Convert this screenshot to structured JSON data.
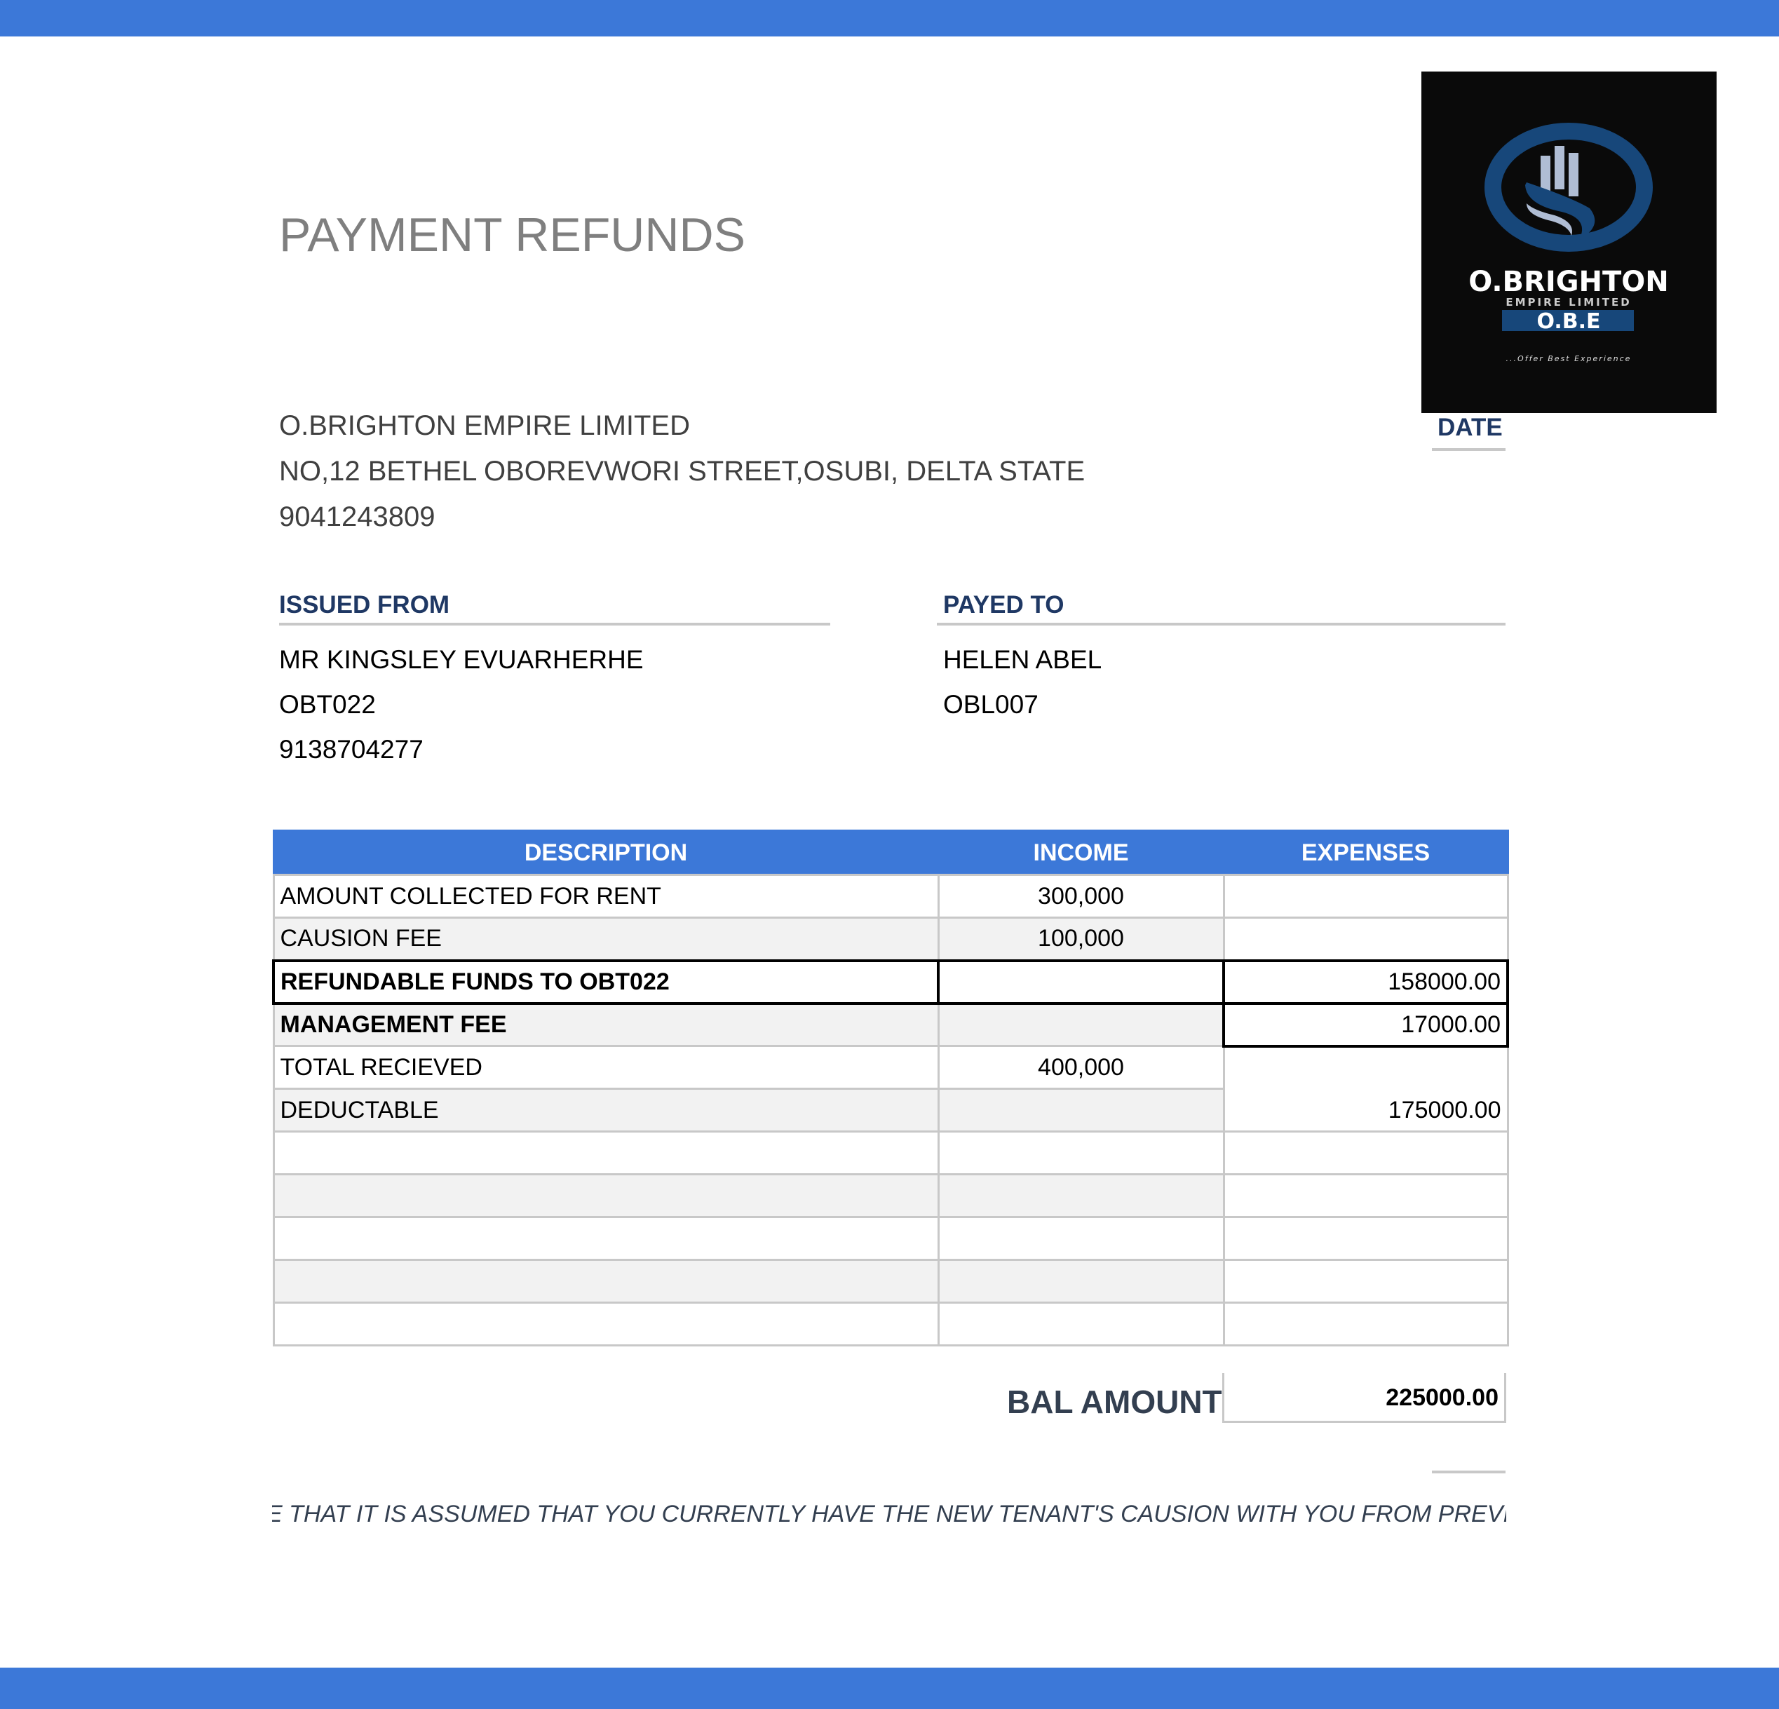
{
  "title": "PAYMENT REFUNDS",
  "company": {
    "name": "O.BRIGHTON EMPIRE LIMITED",
    "address": "NO,12 BETHEL OBOREVWORI STREET,OSUBI, DELTA STATE",
    "phone": "9041243809"
  },
  "logo": {
    "name": "O.BRIGHTON",
    "subtitle": "EMPIRE LIMITED",
    "abbr": "O.B.E",
    "tagline": "...Offer Best Experience"
  },
  "date_label": "DATE",
  "issued_from": {
    "label": "ISSUED FROM",
    "name": "MR KINGSLEY EVUARHERHE",
    "id": "OBT022",
    "phone": "9138704277"
  },
  "payed_to": {
    "label": "PAYED TO",
    "name": "HELEN ABEL",
    "id": "OBL007"
  },
  "table": {
    "headers": [
      "DESCRIPTION",
      "INCOME",
      "EXPENSES"
    ],
    "rows": [
      [
        "AMOUNT COLLECTED FOR RENT",
        "300,000",
        ""
      ],
      [
        "CAUSION FEE",
        "100,000",
        ""
      ],
      [
        "REFUNDABLE FUNDS TO OBT022",
        "",
        "158000.00"
      ],
      [
        "MANAGEMENT FEE",
        "",
        "17000.00"
      ],
      [
        "TOTAL RECIEVED",
        "400,000",
        ""
      ],
      [
        "DEDUCTABLE",
        "",
        "175000.00"
      ],
      [
        "",
        "",
        ""
      ],
      [
        "",
        "",
        ""
      ],
      [
        "",
        "",
        ""
      ],
      [
        "",
        "",
        ""
      ],
      [
        "",
        "",
        ""
      ]
    ]
  },
  "balance": {
    "label": "BAL AMOUNT",
    "value": "225000.00"
  },
  "note": "E THAT IT IS ASSUMED THAT YOU CURRENTLY HAVE THE NEW TENANT'S CAUSION WITH YOU FROM PREVI",
  "colors": {
    "accent": "#3c78d8",
    "label": "#1f3864",
    "logo_blue": "#17477a"
  }
}
